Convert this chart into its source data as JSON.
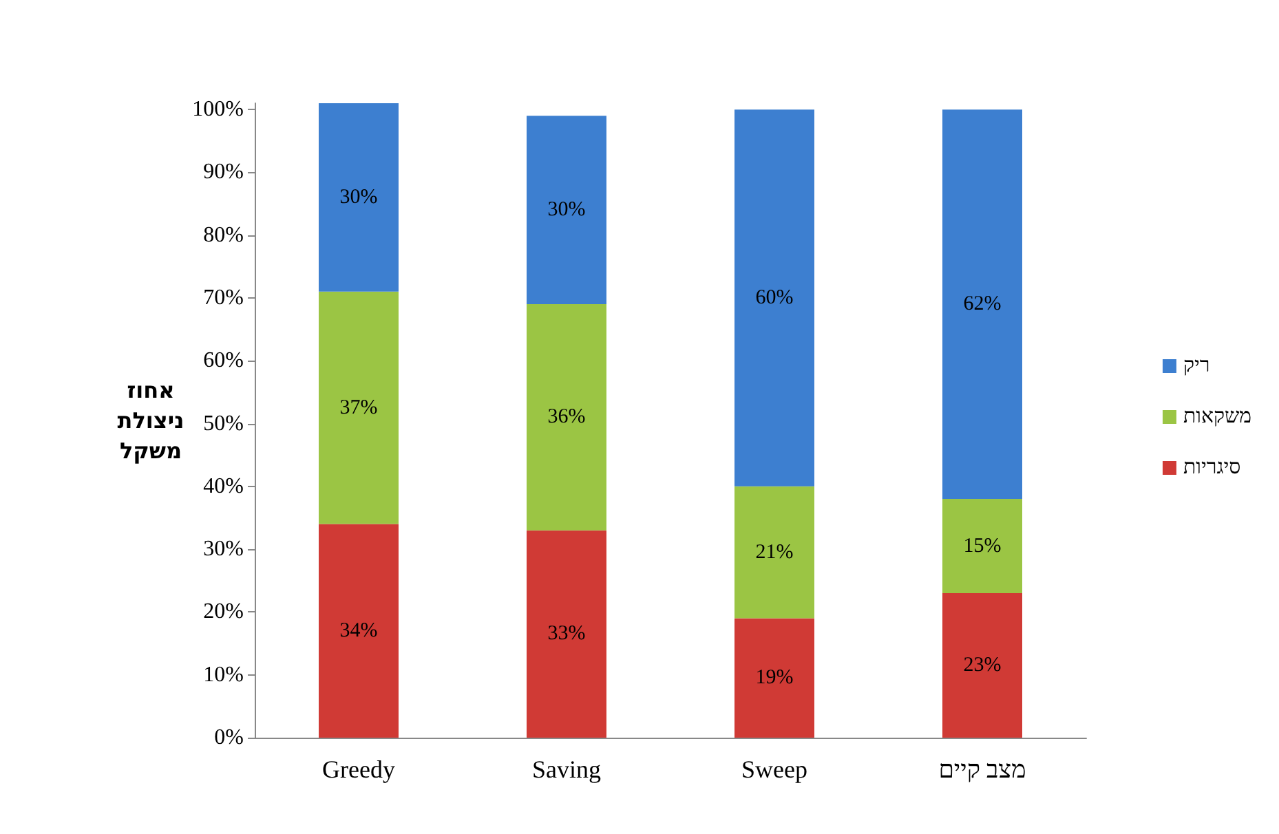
{
  "chart_data": {
    "type": "bar",
    "stacked": true,
    "ylabel": "אחוז ניצולת משקל",
    "categories": [
      "Greedy",
      "Saving",
      "Sweep",
      "מצב קיים"
    ],
    "series": [
      {
        "name": "סיגריות",
        "color": "#d03a35",
        "values": [
          34,
          33,
          19,
          23
        ],
        "value_labels": [
          "34%",
          "33%",
          "19%",
          "23%"
        ]
      },
      {
        "name": "משקאות",
        "color": "#9bc544",
        "values": [
          37,
          36,
          21,
          15
        ],
        "value_labels": [
          "37%",
          "36%",
          "21%",
          "15%"
        ]
      },
      {
        "name": "ריק",
        "color": "#3d7fd0",
        "values": [
          30,
          30,
          60,
          62
        ],
        "value_labels": [
          "30%",
          "30%",
          "60%",
          "62%"
        ]
      }
    ],
    "ylim": [
      0,
      101
    ],
    "yticks": [
      {
        "value": 0,
        "label": "0%"
      },
      {
        "value": 10,
        "label": "10%"
      },
      {
        "value": 20,
        "label": "20%"
      },
      {
        "value": 30,
        "label": "30%"
      },
      {
        "value": 40,
        "label": "40%"
      },
      {
        "value": 50,
        "label": "50%"
      },
      {
        "value": 60,
        "label": "60%"
      },
      {
        "value": 70,
        "label": "70%"
      },
      {
        "value": 80,
        "label": "80%"
      },
      {
        "value": 90,
        "label": "90%"
      },
      {
        "value": 100,
        "label": "100%"
      }
    ],
    "legend": "right",
    "grid": false
  }
}
